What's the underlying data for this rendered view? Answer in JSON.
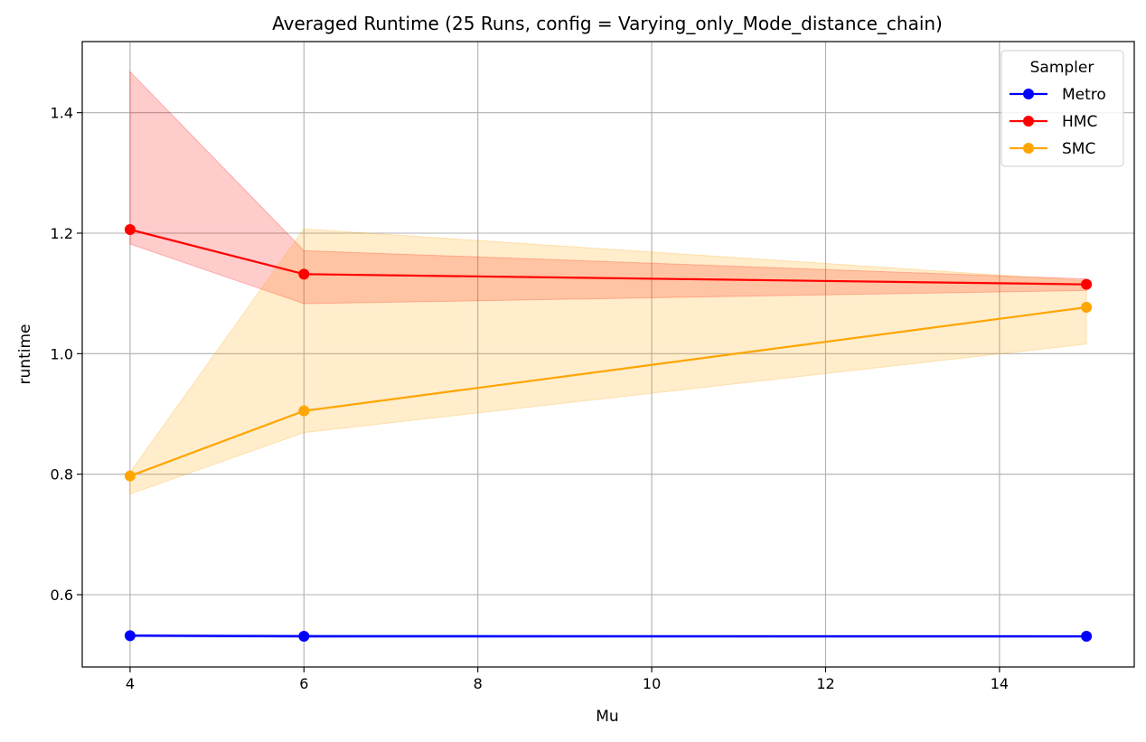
{
  "chart_data": {
    "type": "line",
    "title": "Averaged Runtime (25 Runs, config = Varying_only_Mode_distance_chain)",
    "xlabel": "Mu",
    "ylabel": "runtime",
    "x": [
      4,
      6,
      15
    ],
    "xlim": [
      3.45,
      15.55
    ],
    "ylim": [
      0.48,
      1.518
    ],
    "xticks": [
      4,
      6,
      8,
      10,
      12,
      14
    ],
    "yticks": [
      0.6,
      0.8,
      1.0,
      1.2,
      1.4
    ],
    "xtick_labels": [
      "4",
      "6",
      "8",
      "10",
      "12",
      "14"
    ],
    "ytick_labels": [
      "0.6",
      "0.8",
      "1.0",
      "1.2",
      "1.4"
    ],
    "grid": true,
    "legend": {
      "title": "Sampler",
      "position": "top-right"
    },
    "series": [
      {
        "name": "Metro",
        "color": "#0000ff",
        "band_color": "#0000ff",
        "values": [
          0.532,
          0.531,
          0.531
        ],
        "band_lower": [
          0.53,
          0.529,
          0.529
        ],
        "band_upper": [
          0.534,
          0.533,
          0.532
        ]
      },
      {
        "name": "HMC",
        "color": "#ff0000",
        "band_color": "#ff0000",
        "values": [
          1.206,
          1.132,
          1.115
        ],
        "band_lower": [
          1.182,
          1.083,
          1.105
        ],
        "band_upper": [
          1.468,
          1.171,
          1.124
        ]
      },
      {
        "name": "SMC",
        "color": "#ffa500",
        "band_color": "#ffa500",
        "values": [
          0.797,
          0.905,
          1.077
        ],
        "band_lower": [
          0.767,
          0.869,
          1.016
        ],
        "band_upper": [
          0.803,
          1.207,
          1.121
        ]
      }
    ]
  }
}
